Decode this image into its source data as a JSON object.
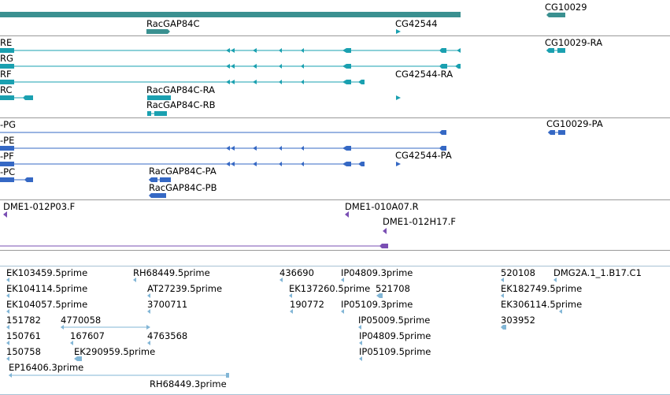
{
  "colors": {
    "gene": "#2e8b8b",
    "transcript_ra": "#1aa0b0",
    "transcript_pa": "#3568c4",
    "cdna": "#7a4fb3",
    "est": "#82b6d6",
    "divider": "#999999"
  },
  "genes": {
    "racgap84c": "RacGAP84C",
    "cg42544": "CG42544",
    "cg10029": "CG10029"
  },
  "transcripts": {
    "re": "RE",
    "rg": "RG",
    "rf": "RF",
    "rc": "RC",
    "racgap84c_ra": "RacGAP84C-RA",
    "racgap84c_rb": "RacGAP84C-RB",
    "cg42544_ra": "CG42544-RA",
    "cg10029_ra": "CG10029-RA"
  },
  "proteins": {
    "pg": "-PG",
    "pe": "-PE",
    "pf": "-PF",
    "pc": "-PC",
    "racgap84c_pa": "RacGAP84C-PA",
    "racgap84c_pb": "RacGAP84C-PB",
    "cg42544_pa": "CG42544-PA",
    "cg10029_pa": "CG10029-PA"
  },
  "cdna": {
    "c1": "DME1-012P03.F",
    "c2": "DME1-010A07.R",
    "c3": "DME1-012H17.F"
  },
  "ests": {
    "e1": "EK103459.5prime",
    "e2": "RH68449.5prime",
    "e3": "436690",
    "e4": "IP04809.3prime",
    "e5": "520108",
    "e6": "DMG2A.1_1.B17.C1",
    "e7": "EK104114.5prime",
    "e8": "AT27239.5prime",
    "e9": "EK137260.5prime",
    "e10": "521708",
    "e11": "EK182749.5prime",
    "e12": "EK104057.5prime",
    "e13": "3700711",
    "e14": "190772",
    "e15": "IP05109.3prime",
    "e16": "EK306114.5prime",
    "e17": "151782",
    "e18": "4770058",
    "e19": "IP05009.5prime",
    "e20": "303952",
    "e21": "150761",
    "e22": "167607",
    "e23": "4763568",
    "e24": "IP04809.5prime",
    "e25": "150758",
    "e26": "EK290959.5prime",
    "e27": "IP05109.5prime",
    "e28": "EP16406.3prime",
    "e29": "RH68449.3prime"
  }
}
